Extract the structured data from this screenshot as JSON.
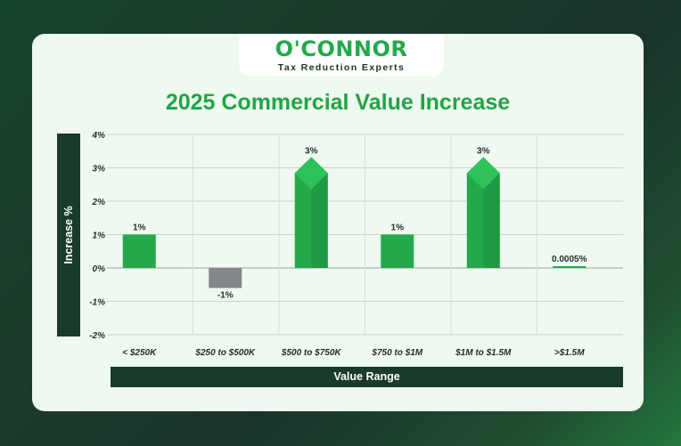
{
  "brand": {
    "name": "O'CONNOR",
    "tagline": "Tax Reduction Experts",
    "colors": {
      "green": "#23a94b",
      "dark": "#1a3a2b",
      "negative": "#86878a"
    }
  },
  "chart_data": {
    "type": "bar",
    "title": "2025 Commercial Value Increase",
    "xlabel": "Value Range",
    "ylabel": "Increase %",
    "categories": [
      "< $250K",
      "$250 to $500K",
      "$500 to $750K",
      "$750 to $1M",
      "$1M to $1.5M",
      ">$1.5M"
    ],
    "values": [
      1,
      -0.6,
      3,
      1,
      3,
      0.0005
    ],
    "data_labels": [
      "1%",
      "-1%",
      "3%",
      "1%",
      "3%",
      "0.0005%"
    ],
    "bar_style": [
      "flat",
      "flat",
      "arrow",
      "flat",
      "arrow",
      "flat"
    ],
    "yticks": [
      "4%",
      "3%",
      "2%",
      "1%",
      "0%",
      "-1%",
      "-2%"
    ],
    "ytick_values": [
      4,
      3,
      2,
      1,
      0,
      -1,
      -2
    ],
    "ylim": [
      -2,
      4
    ],
    "grid": true,
    "legend": "none"
  }
}
